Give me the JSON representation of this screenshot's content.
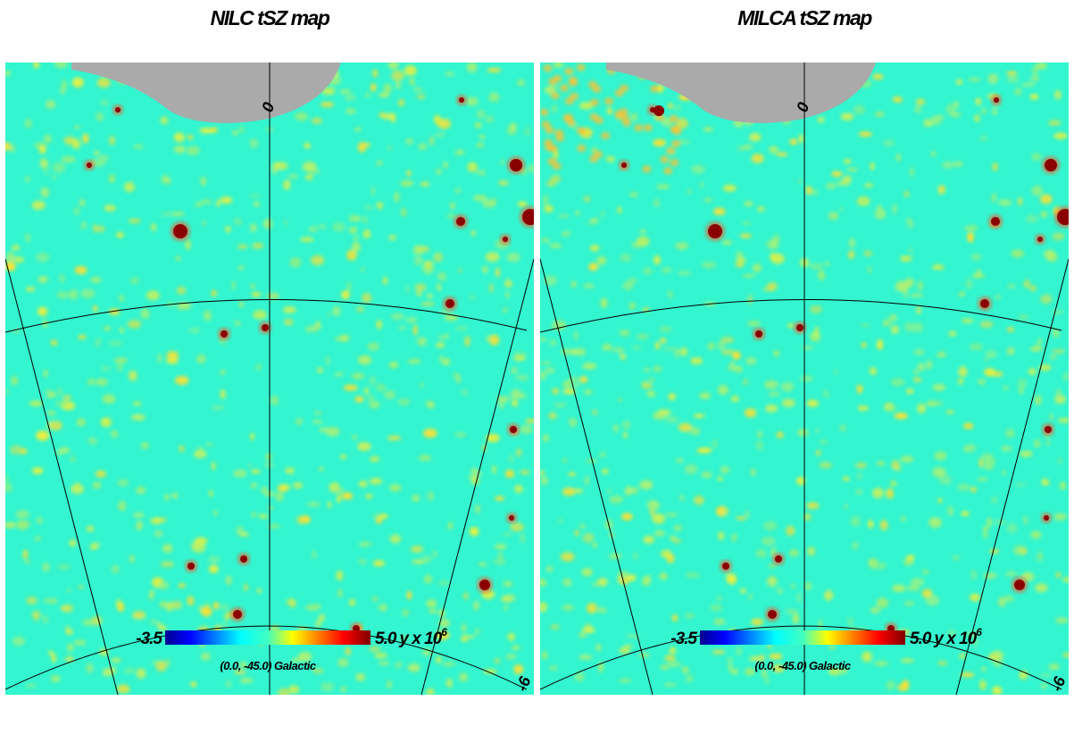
{
  "panels": [
    {
      "title": "NILC tSZ map",
      "colorbar": {
        "min": "-3.5",
        "max": "5.0",
        "unit": "y x 10",
        "exponent": "6"
      },
      "coordinate": "(0.0, -45.0) Galactic",
      "graticule_labels": [
        "0",
        "-6"
      ]
    },
    {
      "title": "MILCA tSZ map",
      "colorbar": {
        "min": "-3.5",
        "max": "5.0",
        "unit": "y x 10",
        "exponent": "6"
      },
      "coordinate": "(0.0, -45.0) Galactic",
      "graticule_labels": [
        "0",
        "-6"
      ]
    }
  ]
}
